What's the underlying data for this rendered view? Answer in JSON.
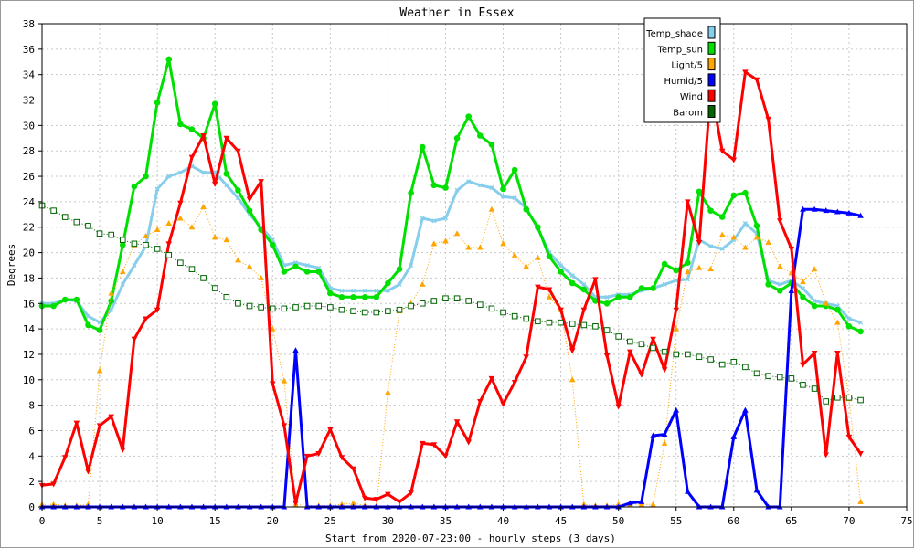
{
  "chart_data": {
    "type": "line",
    "title": "Weather in Essex",
    "xlabel": "Start from 2020-07-23:00 - hourly steps (3 days)",
    "ylabel": "Degrees",
    "xlim": [
      0,
      75
    ],
    "ylim": [
      0,
      38
    ],
    "xticks": [
      0,
      5,
      10,
      15,
      20,
      25,
      30,
      35,
      40,
      45,
      50,
      55,
      60,
      65,
      70,
      75
    ],
    "yticks": [
      0,
      2,
      4,
      6,
      8,
      10,
      12,
      14,
      16,
      18,
      20,
      22,
      24,
      26,
      28,
      30,
      32,
      34,
      36,
      38
    ],
    "grid": true,
    "legend_position": "top-right",
    "x": [
      0,
      1,
      2,
      3,
      4,
      5,
      6,
      7,
      8,
      9,
      10,
      11,
      12,
      13,
      14,
      15,
      16,
      17,
      18,
      19,
      20,
      21,
      22,
      23,
      24,
      25,
      26,
      27,
      28,
      29,
      30,
      31,
      32,
      33,
      34,
      35,
      36,
      37,
      38,
      39,
      40,
      41,
      42,
      43,
      44,
      45,
      46,
      47,
      48,
      49,
      50,
      51,
      52,
      53,
      54,
      55,
      56,
      57,
      58,
      59,
      60,
      61,
      62,
      63,
      64,
      65,
      66,
      67,
      68,
      69,
      70,
      71
    ],
    "series": [
      {
        "name": "Temp_shade",
        "color": "#87ceeb",
        "marker": "x",
        "width": 3,
        "values": [
          16,
          16,
          16.3,
          16.2,
          15,
          14.5,
          15.5,
          17.5,
          19,
          20.5,
          25,
          26,
          26.3,
          26.8,
          26.3,
          26.3,
          25.3,
          24.3,
          23,
          22,
          21,
          19,
          19.2,
          19,
          18.8,
          17.2,
          17,
          17,
          17,
          17,
          17,
          17.5,
          19,
          22.7,
          22.5,
          22.7,
          24.9,
          25.6,
          25.3,
          25.1,
          24.4,
          24.3,
          23.5,
          21.9,
          20,
          19,
          18.2,
          17.5,
          16.5,
          16.5,
          16.7,
          16.7,
          17,
          17.2,
          17.5,
          17.8,
          17.9,
          21,
          20.5,
          20.3,
          21,
          22.3,
          21.5,
          17.8,
          17.5,
          17.8,
          17.2,
          16.2,
          16,
          15.8,
          14.8,
          14.5
        ]
      },
      {
        "name": "Temp_sun",
        "color": "#00e000",
        "marker": "dot",
        "width": 3,
        "values": [
          15.8,
          15.8,
          16.3,
          16.3,
          14.3,
          13.9,
          16.2,
          20.6,
          25.2,
          26,
          31.8,
          35.2,
          30.1,
          29.7,
          29,
          31.7,
          26.2,
          24.9,
          23.3,
          21.8,
          20.6,
          18.5,
          18.9,
          18.5,
          18.5,
          16.8,
          16.5,
          16.5,
          16.5,
          16.5,
          17.6,
          18.7,
          24.7,
          28.3,
          25.3,
          25.1,
          29,
          30.7,
          29.2,
          28.5,
          25,
          26.5,
          23.4,
          22,
          19.7,
          18.5,
          17.6,
          17.1,
          16.2,
          16,
          16.5,
          16.5,
          17.2,
          17.2,
          19.1,
          18.6,
          19.2,
          24.8,
          23.3,
          22.8,
          24.5,
          24.7,
          22.1,
          17.5,
          17,
          17.6,
          16.5,
          15.8,
          15.8,
          15.5,
          14.2,
          13.8
        ]
      },
      {
        "name": "Light/5",
        "color": "#ffa500",
        "marker": "triangle-up",
        "width": 1,
        "dotted": true,
        "values": [
          0.2,
          0.2,
          0.1,
          0.1,
          0.2,
          10.7,
          16.8,
          18.5,
          20.6,
          21.3,
          21.8,
          22.3,
          22.7,
          22,
          23.6,
          21.2,
          21,
          19.4,
          18.9,
          18,
          14,
          9.9,
          0.2,
          0.1,
          0.1,
          0.1,
          0.2,
          0.3,
          0.1,
          0.1,
          9,
          15.4,
          16,
          17.5,
          20.7,
          20.9,
          21.5,
          20.4,
          20.4,
          23.4,
          20.7,
          19.8,
          18.9,
          19.6,
          16.5,
          15.5,
          10,
          0.2,
          0.1,
          0.1,
          0.2,
          0.2,
          0.2,
          0.2,
          5,
          14,
          18.5,
          18.8,
          18.7,
          21.4,
          21.2,
          20.4,
          21.2,
          20.8,
          18.9,
          18.4,
          17.7,
          18.7,
          16,
          14.5,
          8.5,
          0.4
        ]
      },
      {
        "name": "Humid/5",
        "color": "#0000ff",
        "marker": "triangle-up",
        "width": 3,
        "values": [
          0,
          0,
          0,
          0,
          0,
          0,
          0,
          0,
          0,
          0,
          0,
          0,
          0,
          0,
          0,
          0,
          0,
          0,
          0,
          0,
          0,
          0,
          12.3,
          0,
          0,
          0,
          0,
          0,
          0,
          0,
          0,
          0,
          0,
          0,
          0,
          0,
          0,
          0,
          0,
          0,
          0,
          0,
          0,
          0,
          0,
          0,
          0,
          0,
          0,
          0,
          0,
          0.3,
          0.4,
          5.6,
          5.7,
          7.6,
          1.2,
          0,
          0,
          0,
          5.5,
          7.6,
          1.3,
          0,
          0,
          17,
          23.4,
          23.4,
          23.3,
          23.2,
          23.1,
          22.9
        ]
      },
      {
        "name": "Wind",
        "color": "#ff0000",
        "marker": "triangle-down",
        "width": 3,
        "values": [
          1.7,
          1.8,
          3.9,
          6.6,
          2.8,
          6.4,
          7.1,
          4.5,
          13.2,
          14.8,
          15.5,
          20.7,
          23.9,
          27.5,
          29.2,
          25.4,
          29,
          28,
          24.2,
          25.6,
          9.7,
          6.4,
          0.3,
          4,
          4.2,
          6.1,
          3.9,
          3,
          0.7,
          0.6,
          1,
          0.4,
          1.1,
          5,
          4.9,
          4,
          6.7,
          5.1,
          8.3,
          10.1,
          8.1,
          9.8,
          11.8,
          17.3,
          17.1,
          15.5,
          12.3,
          15.5,
          17.9,
          11.9,
          7.9,
          12.2,
          10.4,
          13.2,
          10.8,
          15.5,
          24,
          20.8,
          32.9,
          28,
          27.3,
          34.2,
          33.6,
          30.5,
          22.5,
          20.3,
          11.2,
          12.1,
          4.1,
          12.1,
          5.5,
          4.2
        ]
      },
      {
        "name": "Barom",
        "color": "#006400",
        "marker": "square",
        "width": 1,
        "dotted": true,
        "values": [
          23.7,
          23.3,
          22.8,
          22.4,
          22.1,
          21.5,
          21.4,
          21,
          20.7,
          20.6,
          20.3,
          19.8,
          19.2,
          18.7,
          18,
          17.2,
          16.5,
          16,
          15.8,
          15.7,
          15.6,
          15.6,
          15.7,
          15.8,
          15.8,
          15.7,
          15.5,
          15.4,
          15.3,
          15.3,
          15.4,
          15.5,
          15.8,
          16,
          16.2,
          16.4,
          16.4,
          16.2,
          15.9,
          15.6,
          15.3,
          15,
          14.8,
          14.6,
          14.5,
          14.5,
          14.4,
          14.3,
          14.2,
          13.9,
          13.4,
          13,
          12.8,
          12.5,
          12.2,
          12,
          12,
          11.8,
          11.6,
          11.2,
          11.4,
          11,
          10.5,
          10.3,
          10.2,
          10.1,
          9.6,
          9.3,
          8.3,
          8.6,
          8.6,
          8.4
        ]
      }
    ]
  }
}
